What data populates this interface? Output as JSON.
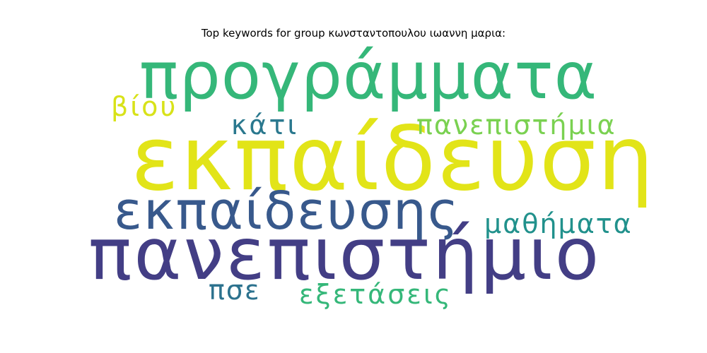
{
  "title": "Top keywords for group κωνσταντοπουλου ιωαννη μαρια:",
  "words": [
    {
      "id": "programmata",
      "text": "προγράμματα",
      "color": "#35b779"
    },
    {
      "id": "ekpaideusi",
      "text": "εκπαίδευση",
      "color": "#e2e418"
    },
    {
      "id": "panepistimio",
      "text": "πανεπιστήμιο",
      "color": "#433e85"
    },
    {
      "id": "ekpaideusis",
      "text": "εκπαίδευσης",
      "color": "#38598c"
    },
    {
      "id": "viou",
      "text": "βίου",
      "color": "#d8e219"
    },
    {
      "id": "kati",
      "text": "κάτι",
      "color": "#2a788e"
    },
    {
      "id": "panepistimia",
      "text": "πανεπιστήμια",
      "color": "#7ad151"
    },
    {
      "id": "mathimata",
      "text": "μαθήματα",
      "color": "#21918c"
    },
    {
      "id": "pse",
      "text": "πσε",
      "color": "#2c728e"
    },
    {
      "id": "exetaseis",
      "text": "εξετάσεις",
      "color": "#35b779"
    }
  ]
}
